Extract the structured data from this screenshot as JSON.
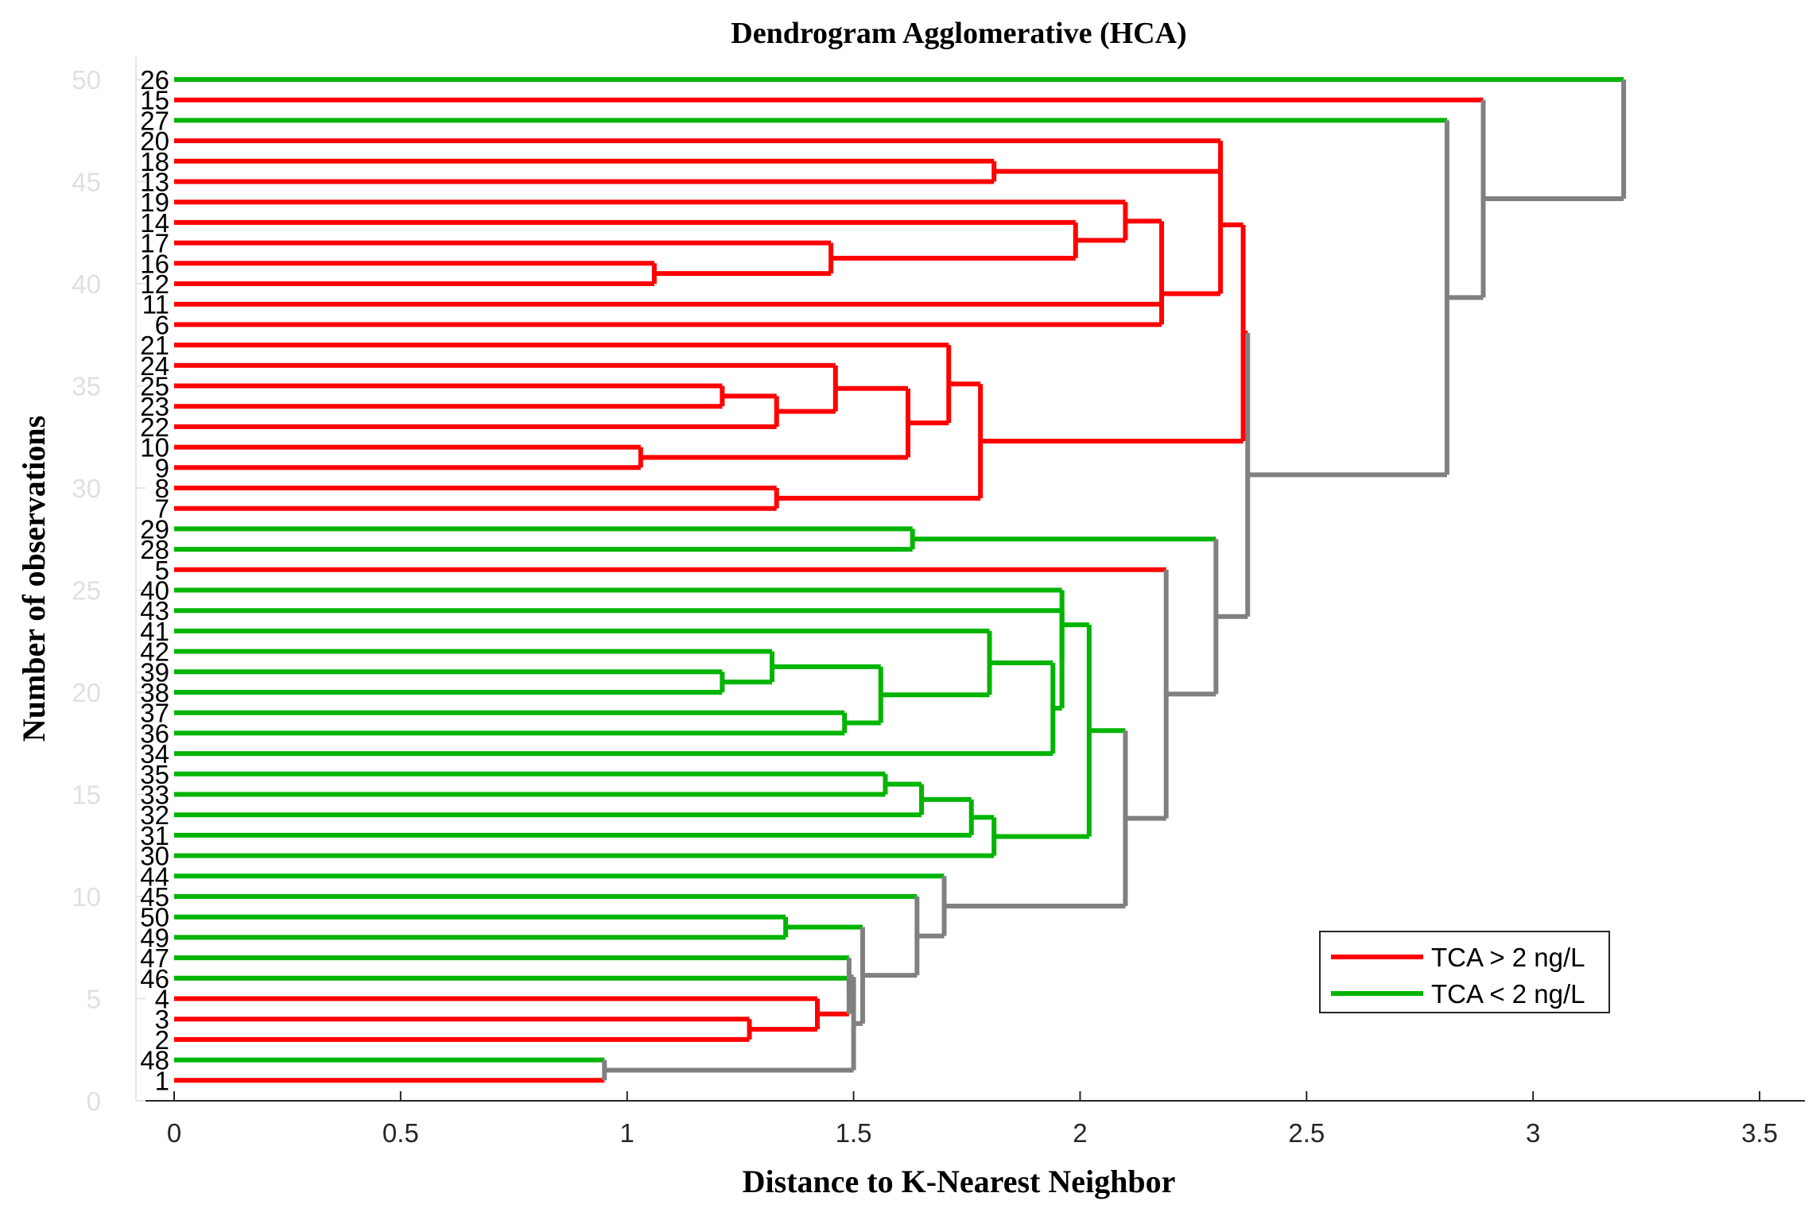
{
  "chart_data": {
    "type": "dendrogram",
    "title": "Dendrogram Agglomerative (HCA)",
    "xlabel": "Distance to K-Nearest Neighbor",
    "ylabel": "Number of observations",
    "xlim": [
      0,
      3.6
    ],
    "ylim": [
      0,
      50
    ],
    "xticks": [
      0,
      0.5,
      1,
      1.5,
      2,
      2.5,
      3,
      3.5
    ],
    "xtick_labels": [
      "0",
      "0.5",
      "1",
      "1.5",
      "2",
      "2.5",
      "3",
      "3.5"
    ],
    "yticks": [
      0,
      5,
      10,
      15,
      20,
      25,
      30,
      35,
      40,
      45,
      50
    ],
    "ytick_labels": [
      "0",
      "5",
      "10",
      "15",
      "20",
      "25",
      "30",
      "35",
      "40",
      "45",
      "50"
    ],
    "leaf_order": [
      "1",
      "48",
      "2",
      "3",
      "4",
      "46",
      "47",
      "49",
      "50",
      "45",
      "44",
      "30",
      "31",
      "32",
      "33",
      "35",
      "34",
      "36",
      "37",
      "38",
      "39",
      "42",
      "41",
      "43",
      "40",
      "5",
      "28",
      "29",
      "7",
      "8",
      "9",
      "10",
      "22",
      "23",
      "25",
      "24",
      "21",
      "6",
      "11",
      "12",
      "16",
      "17",
      "14",
      "19",
      "13",
      "18",
      "20",
      "27",
      "15",
      "26"
    ],
    "leaf_classes": [
      "red",
      "green",
      "red",
      "red",
      "red",
      "green",
      "green",
      "green",
      "green",
      "green",
      "green",
      "green",
      "green",
      "green",
      "green",
      "green",
      "green",
      "green",
      "green",
      "green",
      "green",
      "green",
      "green",
      "green",
      "green",
      "red",
      "green",
      "green",
      "red",
      "red",
      "red",
      "red",
      "red",
      "red",
      "red",
      "red",
      "red",
      "red",
      "red",
      "red",
      "red",
      "red",
      "red",
      "red",
      "red",
      "red",
      "red",
      "green",
      "red",
      "green"
    ],
    "merges": [
      {
        "a": "L:1",
        "b": "L:48",
        "h": 0.95,
        "color": "gray"
      },
      {
        "a": "L:2",
        "b": "L:3",
        "h": 1.27,
        "color": "red"
      },
      {
        "a": "M:1",
        "b": "L:4",
        "h": 1.42,
        "color": "red"
      },
      {
        "a": "M:2",
        "b": "L:46",
        "h": 1.49,
        "color": "gray"
      },
      {
        "a": "M:3",
        "b": "L:47",
        "h": 1.49,
        "color": "gray"
      },
      {
        "a": "M:0",
        "b": "M:4",
        "h": 1.5,
        "color": "gray"
      },
      {
        "a": "L:50",
        "b": "L:49",
        "h": 1.35,
        "color": "green"
      },
      {
        "a": "M:5",
        "b": "M:6",
        "h": 1.52,
        "color": "gray"
      },
      {
        "a": "M:7",
        "b": "L:45",
        "h": 1.64,
        "color": "gray"
      },
      {
        "a": "M:8",
        "b": "L:44",
        "h": 1.7,
        "color": "gray"
      },
      {
        "a": "L:33",
        "b": "L:35",
        "h": 1.57,
        "color": "green"
      },
      {
        "a": "M:10",
        "b": "L:32",
        "h": 1.65,
        "color": "green"
      },
      {
        "a": "M:11",
        "b": "L:31",
        "h": 1.76,
        "color": "green"
      },
      {
        "a": "M:12",
        "b": "L:30",
        "h": 1.81,
        "color": "green"
      },
      {
        "a": "L:38",
        "b": "L:39",
        "h": 1.21,
        "color": "green"
      },
      {
        "a": "M:14",
        "b": "L:42",
        "h": 1.32,
        "color": "green"
      },
      {
        "a": "L:36",
        "b": "L:37",
        "h": 1.48,
        "color": "green"
      },
      {
        "a": "M:15",
        "b": "M:16",
        "h": 1.56,
        "color": "green"
      },
      {
        "a": "M:17",
        "b": "L:41",
        "h": 1.8,
        "color": "green"
      },
      {
        "a": "M:18",
        "b": "L:34",
        "h": 1.94,
        "color": "green"
      },
      {
        "a": "M:19",
        "b": "L:43",
        "h": 1.96,
        "color": "green"
      },
      {
        "a": "M:20",
        "b": "L:40",
        "h": 1.96,
        "color": "green"
      },
      {
        "a": "M:13",
        "b": "M:21",
        "h": 2.02,
        "color": "green"
      },
      {
        "a": "M:9",
        "b": "M:22",
        "h": 2.1,
        "color": "gray"
      },
      {
        "a": "M:23",
        "b": "L:5",
        "h": 2.19,
        "color": "gray"
      },
      {
        "a": "L:28",
        "b": "L:29",
        "h": 1.63,
        "color": "green"
      },
      {
        "a": "M:24",
        "b": "M:25",
        "h": 2.3,
        "color": "gray"
      },
      {
        "a": "L:7",
        "b": "L:8",
        "h": 1.33,
        "color": "red"
      },
      {
        "a": "L:9",
        "b": "L:10",
        "h": 1.03,
        "color": "red"
      },
      {
        "a": "L:25",
        "b": "L:23",
        "h": 1.21,
        "color": "red"
      },
      {
        "a": "M:29",
        "b": "L:22",
        "h": 1.33,
        "color": "red"
      },
      {
        "a": "M:30",
        "b": "L:24",
        "h": 1.46,
        "color": "red"
      },
      {
        "a": "M:28",
        "b": "M:31",
        "h": 1.62,
        "color": "red"
      },
      {
        "a": "M:32",
        "b": "L:21",
        "h": 1.71,
        "color": "red"
      },
      {
        "a": "M:27",
        "b": "M:33",
        "h": 1.78,
        "color": "red"
      },
      {
        "a": "L:12",
        "b": "L:16",
        "h": 1.06,
        "color": "red"
      },
      {
        "a": "M:35",
        "b": "L:17",
        "h": 1.45,
        "color": "red"
      },
      {
        "a": "M:36",
        "b": "L:14",
        "h": 1.99,
        "color": "red"
      },
      {
        "a": "M:37",
        "b": "L:19",
        "h": 2.1,
        "color": "red"
      },
      {
        "a": "M:38",
        "b": "L:11",
        "h": 2.18,
        "color": "red"
      },
      {
        "a": "M:39",
        "b": "L:6",
        "h": 2.18,
        "color": "red"
      },
      {
        "a": "L:13",
        "b": "L:18",
        "h": 1.81,
        "color": "red"
      },
      {
        "a": "M:41",
        "b": "L:20",
        "h": 2.31,
        "color": "red"
      },
      {
        "a": "M:40",
        "b": "M:42",
        "h": 2.31,
        "color": "red"
      },
      {
        "a": "M:34",
        "b": "M:43",
        "h": 2.36,
        "color": "red"
      },
      {
        "a": "M:26",
        "b": "M:44",
        "h": 2.37,
        "color": "gray"
      },
      {
        "a": "M:45",
        "b": "L:27",
        "h": 2.81,
        "color": "gray"
      },
      {
        "a": "M:46",
        "b": "L:15",
        "h": 2.89,
        "color": "gray"
      },
      {
        "a": "M:47",
        "b": "L:26",
        "h": 3.2,
        "color": "gray"
      }
    ],
    "legend": {
      "position": "lower-right",
      "entries": [
        {
          "label": "TCA > 2 ng/L",
          "color": "#ff0000"
        },
        {
          "label": "TCA < 2 ng/L",
          "color": "#00b400"
        }
      ]
    },
    "colors": {
      "red": "#ff0000",
      "green": "#00b400",
      "gray": "#808080",
      "axis": "#262626",
      "ytick_text": "#e0e0e0"
    }
  }
}
